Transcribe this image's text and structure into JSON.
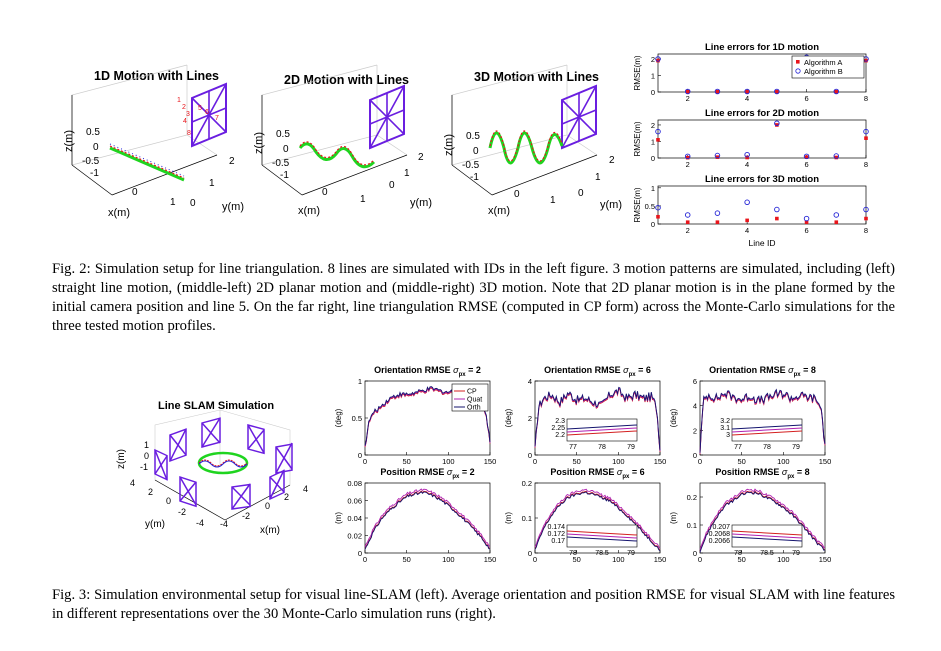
{
  "fig2": {
    "panel_1d": {
      "title": "1D Motion with Lines",
      "zlabel": "z(m)",
      "xlabel": "x(m)",
      "ylabel": "y(m)",
      "zticks": [
        "0.5",
        "0",
        "-0.5",
        "-1"
      ],
      "xticks": [
        "0",
        "1"
      ],
      "yticks": [
        "0",
        "1",
        "2"
      ],
      "line_ids": [
        "1",
        "2",
        "3",
        "4",
        "5",
        "6",
        "7",
        "8"
      ]
    },
    "panel_2d": {
      "title": "2D Motion with Lines",
      "zlabel": "z(m)",
      "xlabel": "x(m)",
      "ylabel": "y(m)",
      "zticks": [
        "0.5",
        "0",
        "-0.5",
        "-1"
      ],
      "xticks": [
        "0",
        "1"
      ],
      "yticks": [
        "0",
        "1",
        "2"
      ]
    },
    "panel_3d": {
      "title": "3D Motion with Lines",
      "zlabel": "z(m)",
      "xlabel": "x(m)",
      "ylabel": "y(m)",
      "zticks": [
        "0.5",
        "0",
        "-0.5",
        "-1"
      ],
      "xticks": [
        "0",
        "1"
      ],
      "yticks": [
        "0",
        "1",
        "2"
      ]
    },
    "caption_label": "Fig. 2:",
    "caption": "Simulation setup for line triangulation. 8 lines are simulated with IDs in the left figure. 3 motion patterns are simulated, including (left) straight line motion, (middle-left) 2D planar motion and (middle-right) 3D motion. Note that 2D planar motion is in the plane formed by the initial camera position and line 5. On the far right, line triangulation RMSE (computed in CP form) across the Monte-Carlo simulations for the three tested motion profiles."
  },
  "fig3": {
    "slam": {
      "title": "Line SLAM Simulation",
      "zlabel": "z(m)",
      "xlabel": "x(m)",
      "ylabel": "y(m)",
      "zticks": [
        "1",
        "0",
        "-1"
      ],
      "xticks": [
        "-4",
        "-2",
        "0",
        "2",
        "4"
      ],
      "yticks": [
        "4",
        "2",
        "0",
        "-2",
        "-4"
      ]
    },
    "orientation_ylabel": "(deg)",
    "position_ylabel": "(m)",
    "sigma_symbol": "σ",
    "sigma_sub": "px",
    "caption_label": "Fig. 3:",
    "caption": "Simulation environmental setup for visual line-SLAM (left). Average orientation and position RMSE for visual SLAM with line features in different representations over the 30 Monte-Carlo simulation runs (right)."
  },
  "chart_data": [
    {
      "type": "scatter",
      "title": "Line errors for 1D motion",
      "ylabel": "RMSE(m)",
      "xlim": [
        1,
        8
      ],
      "ylim": [
        0,
        2.3
      ],
      "x": [
        1,
        2,
        3,
        4,
        5,
        6,
        7,
        8
      ],
      "yticks": [
        "0",
        "1",
        "2"
      ],
      "xticks": [
        "2",
        "4",
        "6",
        "8"
      ],
      "legend_position": "top-right",
      "series": [
        {
          "name": "Algorithm A",
          "marker": "square",
          "color": "#e8151b",
          "values": [
            1.9,
            0.02,
            0.02,
            0.02,
            0.02,
            2.0,
            0.02,
            1.9
          ]
        },
        {
          "name": "Algorithm B",
          "marker": "circle",
          "color": "#2424d6",
          "values": [
            2.0,
            0.03,
            0.03,
            0.03,
            0.03,
            2.1,
            0.03,
            2.0
          ]
        }
      ]
    },
    {
      "type": "scatter",
      "title": "Line errors for 2D motion",
      "ylabel": "RMSE(m)",
      "xlim": [
        1,
        8
      ],
      "ylim": [
        0,
        2.3
      ],
      "x": [
        1,
        2,
        3,
        4,
        5,
        6,
        7,
        8
      ],
      "yticks": [
        "0",
        "1",
        "2"
      ],
      "xticks": [
        "2",
        "4",
        "6",
        "8"
      ],
      "series": [
        {
          "name": "Algorithm A",
          "marker": "square",
          "color": "#e8151b",
          "values": [
            1.1,
            0.02,
            0.05,
            0.03,
            2.0,
            0.05,
            0.03,
            1.2
          ]
        },
        {
          "name": "Algorithm B",
          "marker": "circle",
          "color": "#2424d6",
          "values": [
            1.6,
            0.1,
            0.15,
            0.2,
            2.1,
            0.1,
            0.12,
            1.6
          ]
        }
      ]
    },
    {
      "type": "scatter",
      "title": "Line errors for 3D motion",
      "ylabel": "RMSE(m)",
      "xlabel": "Line ID",
      "xlim": [
        1,
        8
      ],
      "ylim": [
        0,
        1.05
      ],
      "x": [
        1,
        2,
        3,
        4,
        5,
        6,
        7,
        8
      ],
      "yticks": [
        "0",
        "0.5",
        "1"
      ],
      "xticks": [
        "2",
        "4",
        "6",
        "8"
      ],
      "series": [
        {
          "name": "Algorithm A",
          "marker": "square",
          "color": "#e8151b",
          "values": [
            0.2,
            0.05,
            0.05,
            0.1,
            0.15,
            0.05,
            0.05,
            0.15
          ]
        },
        {
          "name": "Algorithm B",
          "marker": "circle",
          "color": "#2424d6",
          "values": [
            0.45,
            0.25,
            0.3,
            0.6,
            0.4,
            0.15,
            0.25,
            0.4
          ]
        }
      ]
    },
    {
      "type": "line",
      "title": "Orientation RMSE",
      "sigma": "2",
      "ylabel": "(deg)",
      "xlim": [
        0,
        150
      ],
      "ylim": [
        0,
        1
      ],
      "xticks": [
        "0",
        "50",
        "100",
        "150"
      ],
      "yticks": [
        "0",
        "0.5",
        "1"
      ],
      "legend_position": "top-right",
      "series": [
        {
          "name": "CP",
          "color": "#d42020"
        },
        {
          "name": "Quat",
          "color": "#b020b0"
        },
        {
          "name": "Orth",
          "color": "#14146e"
        }
      ],
      "profile": [
        [
          0,
          0.1
        ],
        [
          5,
          0.45
        ],
        [
          10,
          0.55
        ],
        [
          20,
          0.65
        ],
        [
          30,
          0.75
        ],
        [
          40,
          0.8
        ],
        [
          50,
          0.8
        ],
        [
          60,
          0.82
        ],
        [
          70,
          0.85
        ],
        [
          80,
          0.88
        ],
        [
          90,
          0.85
        ],
        [
          100,
          0.83
        ],
        [
          110,
          0.85
        ],
        [
          120,
          0.8
        ],
        [
          130,
          0.82
        ],
        [
          140,
          0.75
        ],
        [
          145,
          0.55
        ],
        [
          150,
          0.15
        ]
      ]
    },
    {
      "type": "line",
      "title": "Orientation RMSE",
      "sigma": "6",
      "ylabel": "(deg)",
      "xlim": [
        0,
        150
      ],
      "ylim": [
        0,
        4
      ],
      "xticks": [
        "0",
        "50",
        "100",
        "150"
      ],
      "yticks": [
        "0",
        "2",
        "4"
      ],
      "series": [
        {
          "name": "CP",
          "color": "#d42020"
        },
        {
          "name": "Quat",
          "color": "#b020b0"
        },
        {
          "name": "Orth",
          "color": "#14146e"
        }
      ],
      "profile": [
        [
          0,
          0.2
        ],
        [
          4,
          2.5
        ],
        [
          10,
          3.0
        ],
        [
          20,
          3.2
        ],
        [
          30,
          2.8
        ],
        [
          40,
          3.3
        ],
        [
          50,
          2.9
        ],
        [
          60,
          3.0
        ],
        [
          70,
          2.8
        ],
        [
          80,
          2.6
        ],
        [
          90,
          3.2
        ],
        [
          100,
          3.4
        ],
        [
          110,
          3.0
        ],
        [
          120,
          3.2
        ],
        [
          130,
          3.0
        ],
        [
          140,
          3.1
        ],
        [
          146,
          2.5
        ],
        [
          150,
          0.3
        ]
      ],
      "inset": {
        "xticks": [
          "77",
          "78",
          "79"
        ],
        "yticks": [
          "2.3",
          "2.25",
          "2.2"
        ]
      }
    },
    {
      "type": "line",
      "title": "Orientation RMSE",
      "sigma": "8",
      "ylabel": "(deg)",
      "xlim": [
        0,
        150
      ],
      "ylim": [
        0,
        6
      ],
      "xticks": [
        "0",
        "50",
        "100",
        "150"
      ],
      "yticks": [
        "0",
        "2",
        "4",
        "6"
      ],
      "series": [
        {
          "name": "CP",
          "color": "#d42020"
        },
        {
          "name": "Quat",
          "color": "#b020b0"
        },
        {
          "name": "Orth",
          "color": "#14146e"
        }
      ],
      "profile": [
        [
          0,
          0.3
        ],
        [
          4,
          4.3
        ],
        [
          10,
          4.8
        ],
        [
          20,
          4.5
        ],
        [
          30,
          4.9
        ],
        [
          40,
          4.6
        ],
        [
          50,
          4.4
        ],
        [
          60,
          4.7
        ],
        [
          70,
          4.3
        ],
        [
          80,
          4.5
        ],
        [
          90,
          4.8
        ],
        [
          100,
          4.9
        ],
        [
          110,
          4.5
        ],
        [
          120,
          4.7
        ],
        [
          130,
          4.6
        ],
        [
          140,
          4.4
        ],
        [
          146,
          3.5
        ],
        [
          150,
          0.5
        ]
      ],
      "inset": {
        "xticks": [
          "77",
          "78",
          "79"
        ],
        "yticks": [
          "3.2",
          "3.1",
          "3"
        ]
      }
    },
    {
      "type": "line",
      "title": "Position RMSE",
      "sigma": "2",
      "ylabel": "(m)",
      "xlim": [
        0,
        150
      ],
      "ylim": [
        0,
        0.08
      ],
      "xticks": [
        "0",
        "50",
        "100",
        "150"
      ],
      "yticks": [
        "0",
        "0.02",
        "0.04",
        "0.06",
        "0.08"
      ],
      "series": [
        {
          "name": "CP",
          "color": "#d42020"
        },
        {
          "name": "Quat",
          "color": "#b020b0"
        },
        {
          "name": "Orth",
          "color": "#14146e"
        }
      ],
      "profile": [
        [
          0,
          0.005
        ],
        [
          10,
          0.025
        ],
        [
          20,
          0.04
        ],
        [
          30,
          0.05
        ],
        [
          40,
          0.058
        ],
        [
          50,
          0.065
        ],
        [
          60,
          0.068
        ],
        [
          70,
          0.07
        ],
        [
          80,
          0.067
        ],
        [
          90,
          0.062
        ],
        [
          100,
          0.055
        ],
        [
          110,
          0.047
        ],
        [
          120,
          0.038
        ],
        [
          130,
          0.028
        ],
        [
          140,
          0.018
        ],
        [
          150,
          0.005
        ]
      ]
    },
    {
      "type": "line",
      "title": "Position RMSE",
      "sigma": "6",
      "ylabel": "(m)",
      "xlim": [
        0,
        150
      ],
      "ylim": [
        0,
        0.2
      ],
      "xticks": [
        "0",
        "50",
        "100",
        "150"
      ],
      "yticks": [
        "0",
        "0.1",
        "0.2"
      ],
      "series": [
        {
          "name": "CP",
          "color": "#d42020"
        },
        {
          "name": "Quat",
          "color": "#b020b0"
        },
        {
          "name": "Orth",
          "color": "#14146e"
        }
      ],
      "profile": [
        [
          0,
          0.01
        ],
        [
          10,
          0.07
        ],
        [
          20,
          0.11
        ],
        [
          30,
          0.14
        ],
        [
          40,
          0.16
        ],
        [
          50,
          0.17
        ],
        [
          60,
          0.175
        ],
        [
          70,
          0.17
        ],
        [
          80,
          0.16
        ],
        [
          90,
          0.15
        ],
        [
          100,
          0.13
        ],
        [
          110,
          0.11
        ],
        [
          120,
          0.085
        ],
        [
          130,
          0.06
        ],
        [
          140,
          0.035
        ],
        [
          150,
          0.01
        ]
      ],
      "inset": {
        "xticks": [
          "78",
          "78.5",
          "79"
        ],
        "yticks": [
          "0.174",
          "0.172",
          "0.17"
        ]
      }
    },
    {
      "type": "line",
      "title": "Position RMSE",
      "sigma": "8",
      "ylabel": "(m)",
      "xlim": [
        0,
        150
      ],
      "ylim": [
        0,
        0.25
      ],
      "xticks": [
        "0",
        "50",
        "100",
        "150"
      ],
      "yticks": [
        "0",
        "0.1",
        "0.2"
      ],
      "series": [
        {
          "name": "CP",
          "color": "#d42020"
        },
        {
          "name": "Quat",
          "color": "#b020b0"
        },
        {
          "name": "Orth",
          "color": "#14146e"
        }
      ],
      "profile": [
        [
          0,
          0.01
        ],
        [
          10,
          0.08
        ],
        [
          20,
          0.13
        ],
        [
          30,
          0.17
        ],
        [
          40,
          0.19
        ],
        [
          50,
          0.21
        ],
        [
          60,
          0.22
        ],
        [
          70,
          0.215
        ],
        [
          80,
          0.2
        ],
        [
          90,
          0.185
        ],
        [
          100,
          0.165
        ],
        [
          110,
          0.14
        ],
        [
          120,
          0.11
        ],
        [
          130,
          0.075
        ],
        [
          140,
          0.04
        ],
        [
          150,
          0.01
        ]
      ],
      "inset": {
        "xticks": [
          "78",
          "78.5",
          "79"
        ],
        "yticks": [
          "0.207",
          "0.2068",
          "0.2066"
        ]
      }
    }
  ]
}
